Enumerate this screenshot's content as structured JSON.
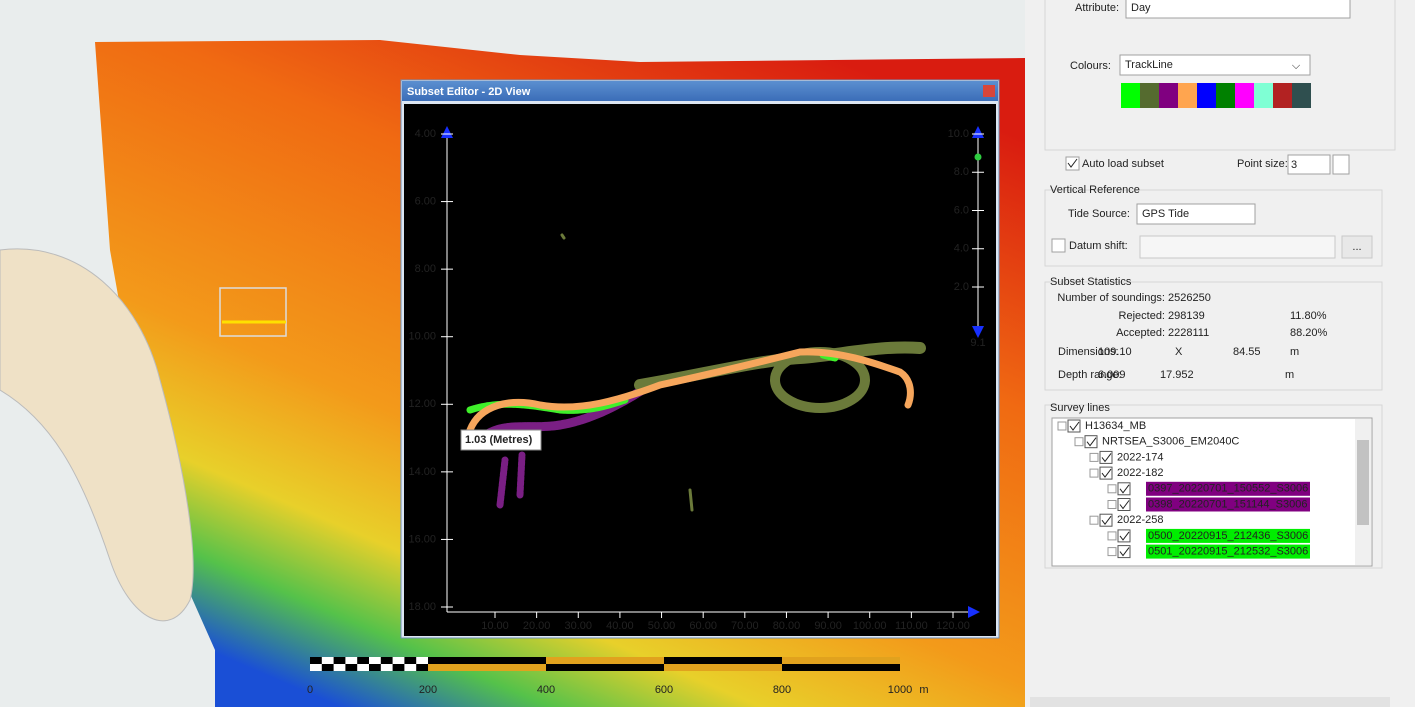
{
  "map": {
    "scale_labels": [
      "0",
      "200",
      "400",
      "600",
      "800",
      "1000",
      "m"
    ]
  },
  "subset_editor": {
    "title": "Subset Editor - 2D View",
    "yticks": [
      {
        "value": 4,
        "label": "4.00"
      },
      {
        "value": 6,
        "label": "6.00"
      },
      {
        "value": 8,
        "label": "8.00"
      },
      {
        "value": 10,
        "label": "10.00"
      },
      {
        "value": 12,
        "label": "12.00"
      },
      {
        "value": 14,
        "label": "14.00"
      },
      {
        "value": 16,
        "label": "16.00"
      },
      {
        "value": 18,
        "label": "18.00"
      }
    ],
    "xticks": [
      {
        "value": 10,
        "label": "10.00"
      },
      {
        "value": 20,
        "label": "20.00"
      },
      {
        "value": 30,
        "label": "30.00"
      },
      {
        "value": 40,
        "label": "40.00"
      },
      {
        "value": 50,
        "label": "50.00"
      },
      {
        "value": 60,
        "label": "60.00"
      },
      {
        "value": 70,
        "label": "70.00"
      },
      {
        "value": 80,
        "label": "80.00"
      },
      {
        "value": 90,
        "label": "90.00"
      },
      {
        "value": 100,
        "label": "100.00"
      },
      {
        "value": 110,
        "label": "110.00"
      },
      {
        "value": 120,
        "label": "120.00"
      }
    ],
    "slider_ticks": [
      {
        "value": 10,
        "label": "10.0"
      },
      {
        "value": 8,
        "label": "8.0"
      },
      {
        "value": 6,
        "label": "6.0"
      },
      {
        "value": 4,
        "label": "4.0"
      },
      {
        "value": 2,
        "label": "2.0"
      }
    ],
    "slider_value": 9.1,
    "measure_label": "1.03 (Metres)"
  },
  "panel": {
    "attribute_label": "Attribute:",
    "attribute_value": "Day",
    "colours_label": "Colours:",
    "colours_value": "TrackLine",
    "auto_load": "Auto load subset",
    "point_size_label": "Point size:",
    "point_size": "3",
    "vertical_reference": {
      "title": "Vertical Reference",
      "tide_source_label": "Tide Source:",
      "tide_source": "GPS Tide",
      "datum_shift": "Datum shift:",
      "browse": "..."
    },
    "statistics": {
      "title": "Subset Statistics",
      "soundings_label": "Number of soundings:",
      "soundings": "2526250",
      "rejected_label": "Rejected:",
      "rejected": "298139",
      "rejected_pct": "11.80%",
      "accepted_label": "Accepted:",
      "accepted": "2228111",
      "accepted_pct": "88.20%",
      "dimensions_label": "Dimensions:",
      "dim_x": "109.10",
      "dim_sep": "X",
      "dim_y": "84.55",
      "dim_unit": "m",
      "depth_label": "Depth range:",
      "depth_min": "6.009",
      "depth_max": "17.952",
      "depth_unit": "m"
    },
    "survey_lines": {
      "title": "Survey lines",
      "items": [
        "H13634_MB",
        "NRTSEA_S3006_EM2040C",
        "2022-174",
        "2022-182",
        "0397_20220701_150552_S3006",
        "0398_20220701_151144_S3006",
        "2022-258",
        "0500_20220915_212436_S3006",
        "0501_20220915_212532_S3006"
      ]
    }
  }
}
